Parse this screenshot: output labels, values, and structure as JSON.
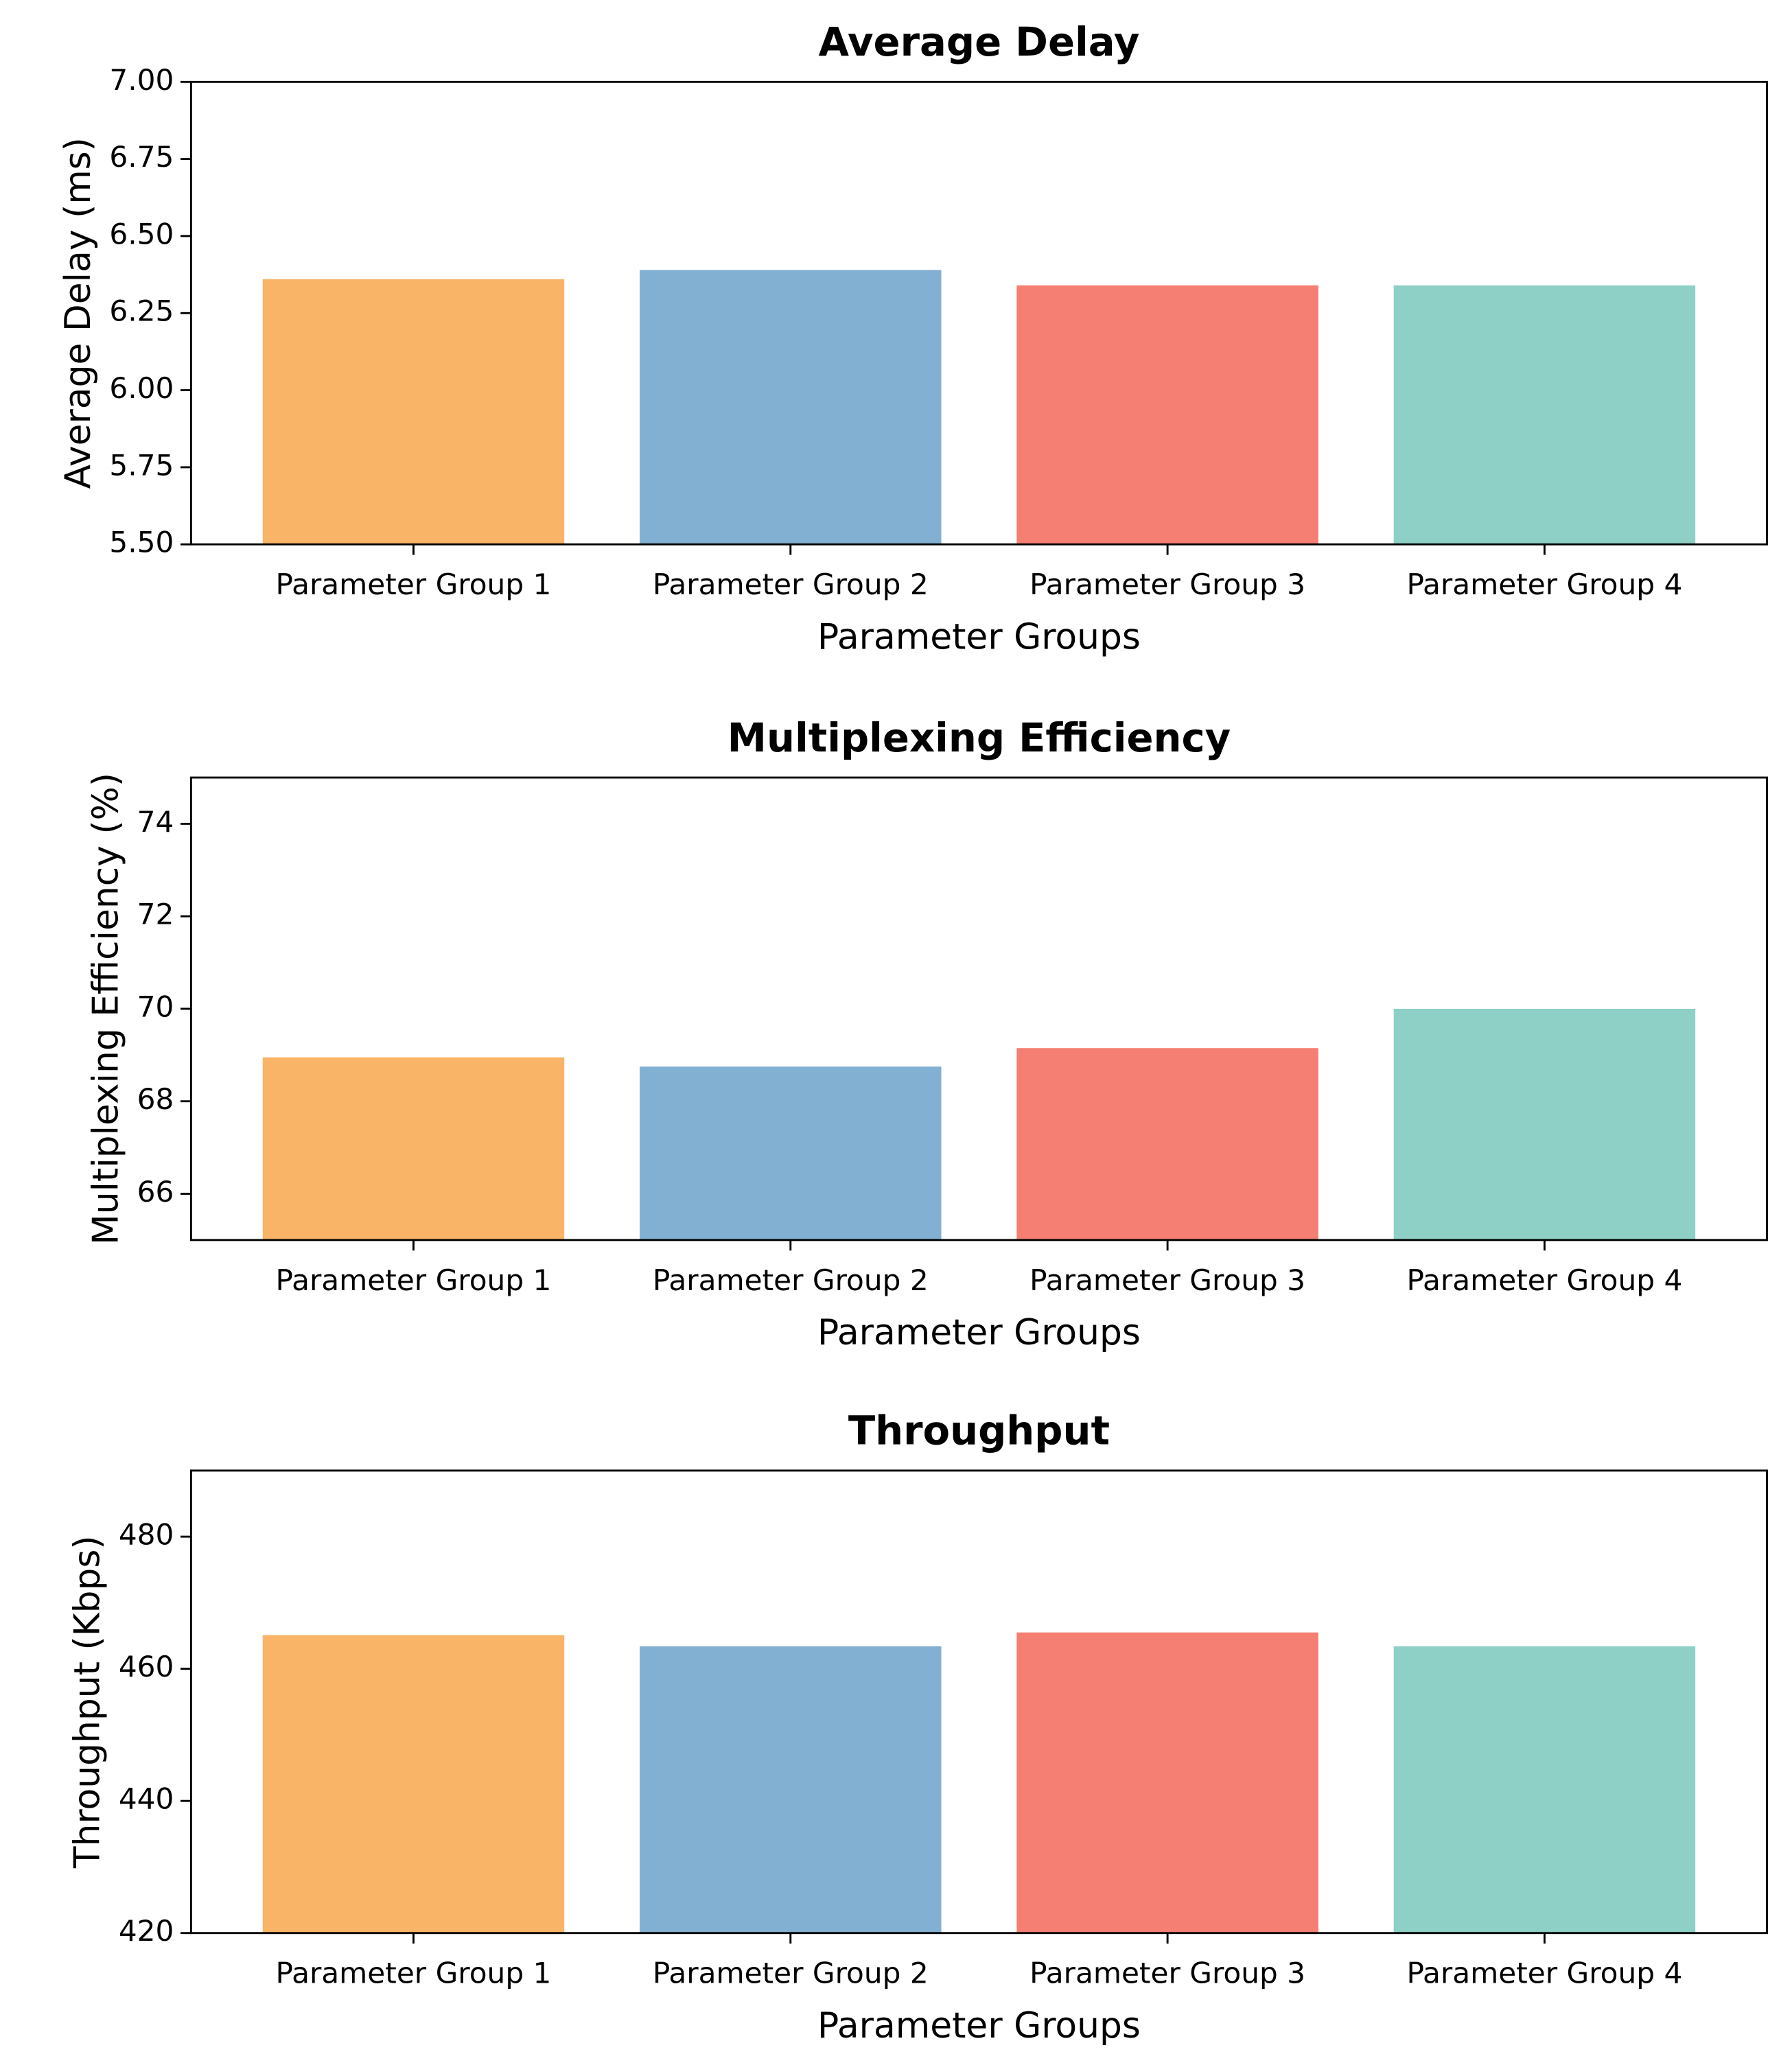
{
  "chart_data": [
    {
      "type": "bar",
      "title": "Average Delay",
      "xlabel": "Parameter Groups",
      "ylabel": "Average Delay (ms)",
      "categories": [
        "Parameter Group 1",
        "Parameter Group 2",
        "Parameter Group 3",
        "Parameter Group 4"
      ],
      "values": [
        6.36,
        6.39,
        6.34,
        6.34
      ],
      "colors": [
        "#f9b467",
        "#82b0d2",
        "#f47f72",
        "#8ecfc6"
      ],
      "ylim": [
        5.5,
        7.0
      ],
      "yticks": [
        {
          "value": 5.5,
          "label": "5.50"
        },
        {
          "value": 5.75,
          "label": "5.75"
        },
        {
          "value": 6.0,
          "label": "6.00"
        },
        {
          "value": 6.25,
          "label": "6.25"
        },
        {
          "value": 6.5,
          "label": "6.50"
        },
        {
          "value": 6.75,
          "label": "6.75"
        },
        {
          "value": 7.0,
          "label": "7.00"
        }
      ],
      "grid": false
    },
    {
      "type": "bar",
      "title": "Multiplexing Efficiency",
      "xlabel": "Parameter Groups",
      "ylabel": "Multiplexing Efficiency (%)",
      "categories": [
        "Parameter Group 1",
        "Parameter Group 2",
        "Parameter Group 3",
        "Parameter Group 4"
      ],
      "values": [
        68.95,
        68.75,
        69.15,
        70.0
      ],
      "colors": [
        "#f9b467",
        "#82b0d2",
        "#f47f72",
        "#8ecfc6"
      ],
      "ylim": [
        65,
        75
      ],
      "yticks": [
        66,
        68,
        70,
        72,
        74
      ],
      "grid": false
    },
    {
      "type": "bar",
      "title": "Throughput",
      "xlabel": "Parameter Groups",
      "ylabel": "Throughput (Kbps)",
      "categories": [
        "Parameter Group 1",
        "Parameter Group 2",
        "Parameter Group 3",
        "Parameter Group 4"
      ],
      "values": [
        465.1,
        463.4,
        465.5,
        463.4
      ],
      "colors": [
        "#f9b467",
        "#82b0d2",
        "#f47f72",
        "#8ecfc6"
      ],
      "ylim": [
        420,
        490
      ],
      "yticks": [
        420,
        440,
        460,
        480
      ],
      "grid": false
    }
  ]
}
